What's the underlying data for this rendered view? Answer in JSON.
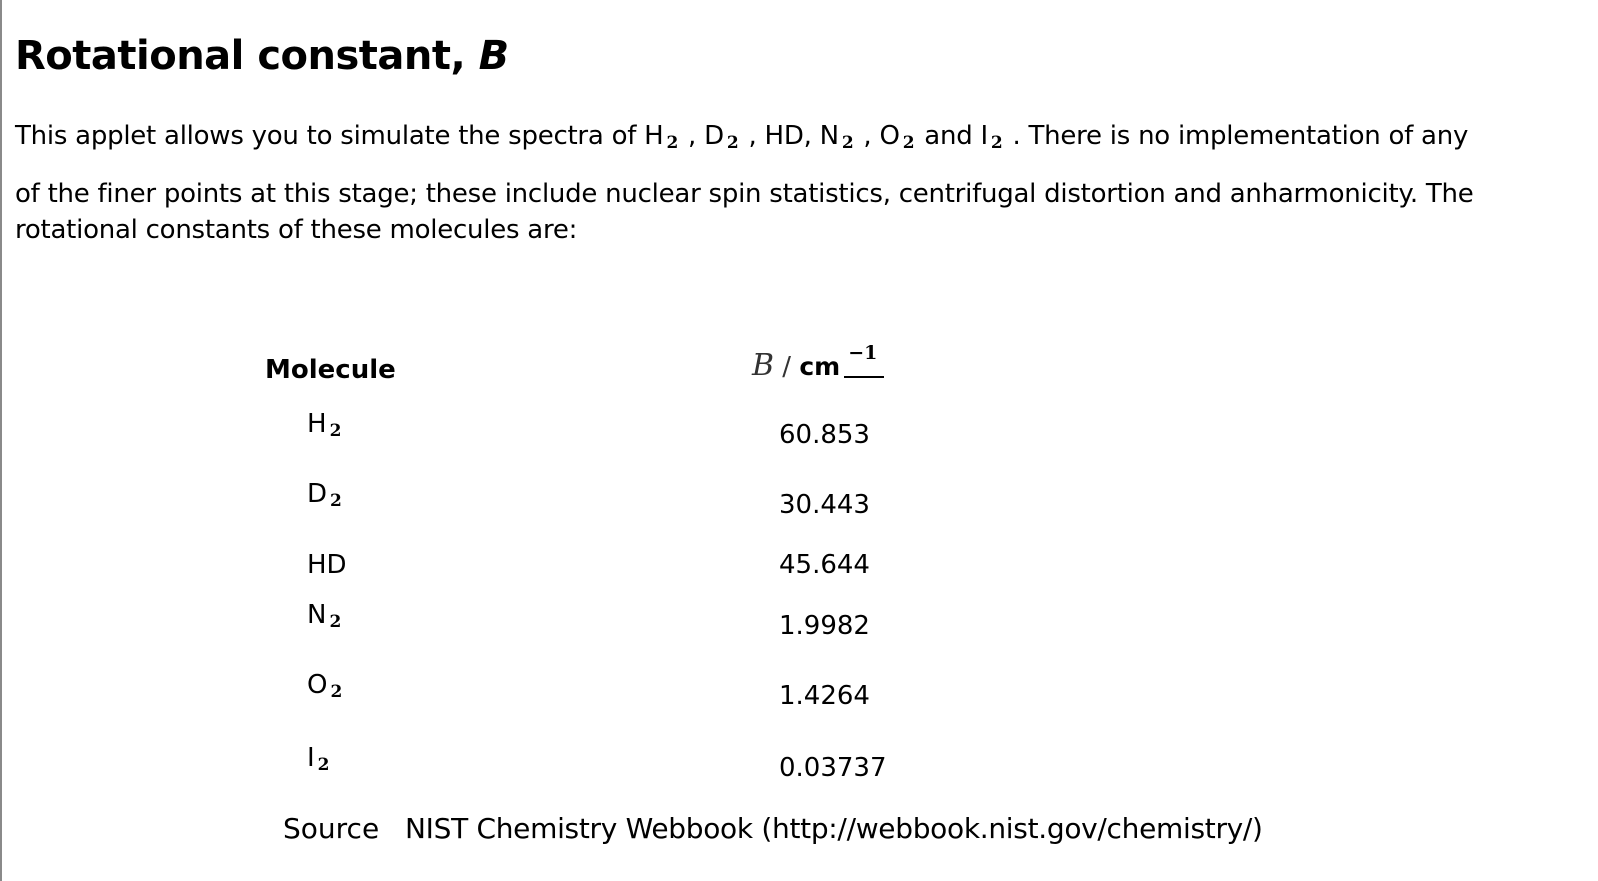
{
  "heading": {
    "text": "Rotational constant, ",
    "symbol": "B"
  },
  "intro": {
    "line1_prefix": "This applet allows you to simulate the spectra of H",
    "sub": "2",
    "sep": " , ",
    "d": "D",
    "hd": "HD, N",
    "o": "O",
    "and_i": " and I",
    "line1_suffix": " . There is no implementation of any",
    "line2": "of the finer points at this stage; these include nuclear spin statistics, centrifugal distortion and anharmonicity. The",
    "line3": "rotational constants of these molecules are:"
  },
  "table": {
    "header_molecule": "Molecule",
    "header_b_symbol": "B",
    "header_b_slash": " / ",
    "header_b_unit": "cm",
    "header_b_exponent": "−1",
    "rows": [
      {
        "molecule": "H",
        "sub": "2",
        "value": "60.853"
      },
      {
        "molecule": "D",
        "sub": "2",
        "value": "30.443"
      },
      {
        "molecule": "HD",
        "sub": "",
        "value": "45.644"
      },
      {
        "molecule": "N",
        "sub": "2",
        "value": "1.9982"
      },
      {
        "molecule": "O",
        "sub": "2",
        "value": "1.4264"
      },
      {
        "molecule": "I",
        "sub": "2",
        "value": "0.03737"
      }
    ]
  },
  "source": {
    "label": "Source",
    "text": "NIST Chemistry Webbook (http://webbook.nist.gov/chemistry/)"
  }
}
